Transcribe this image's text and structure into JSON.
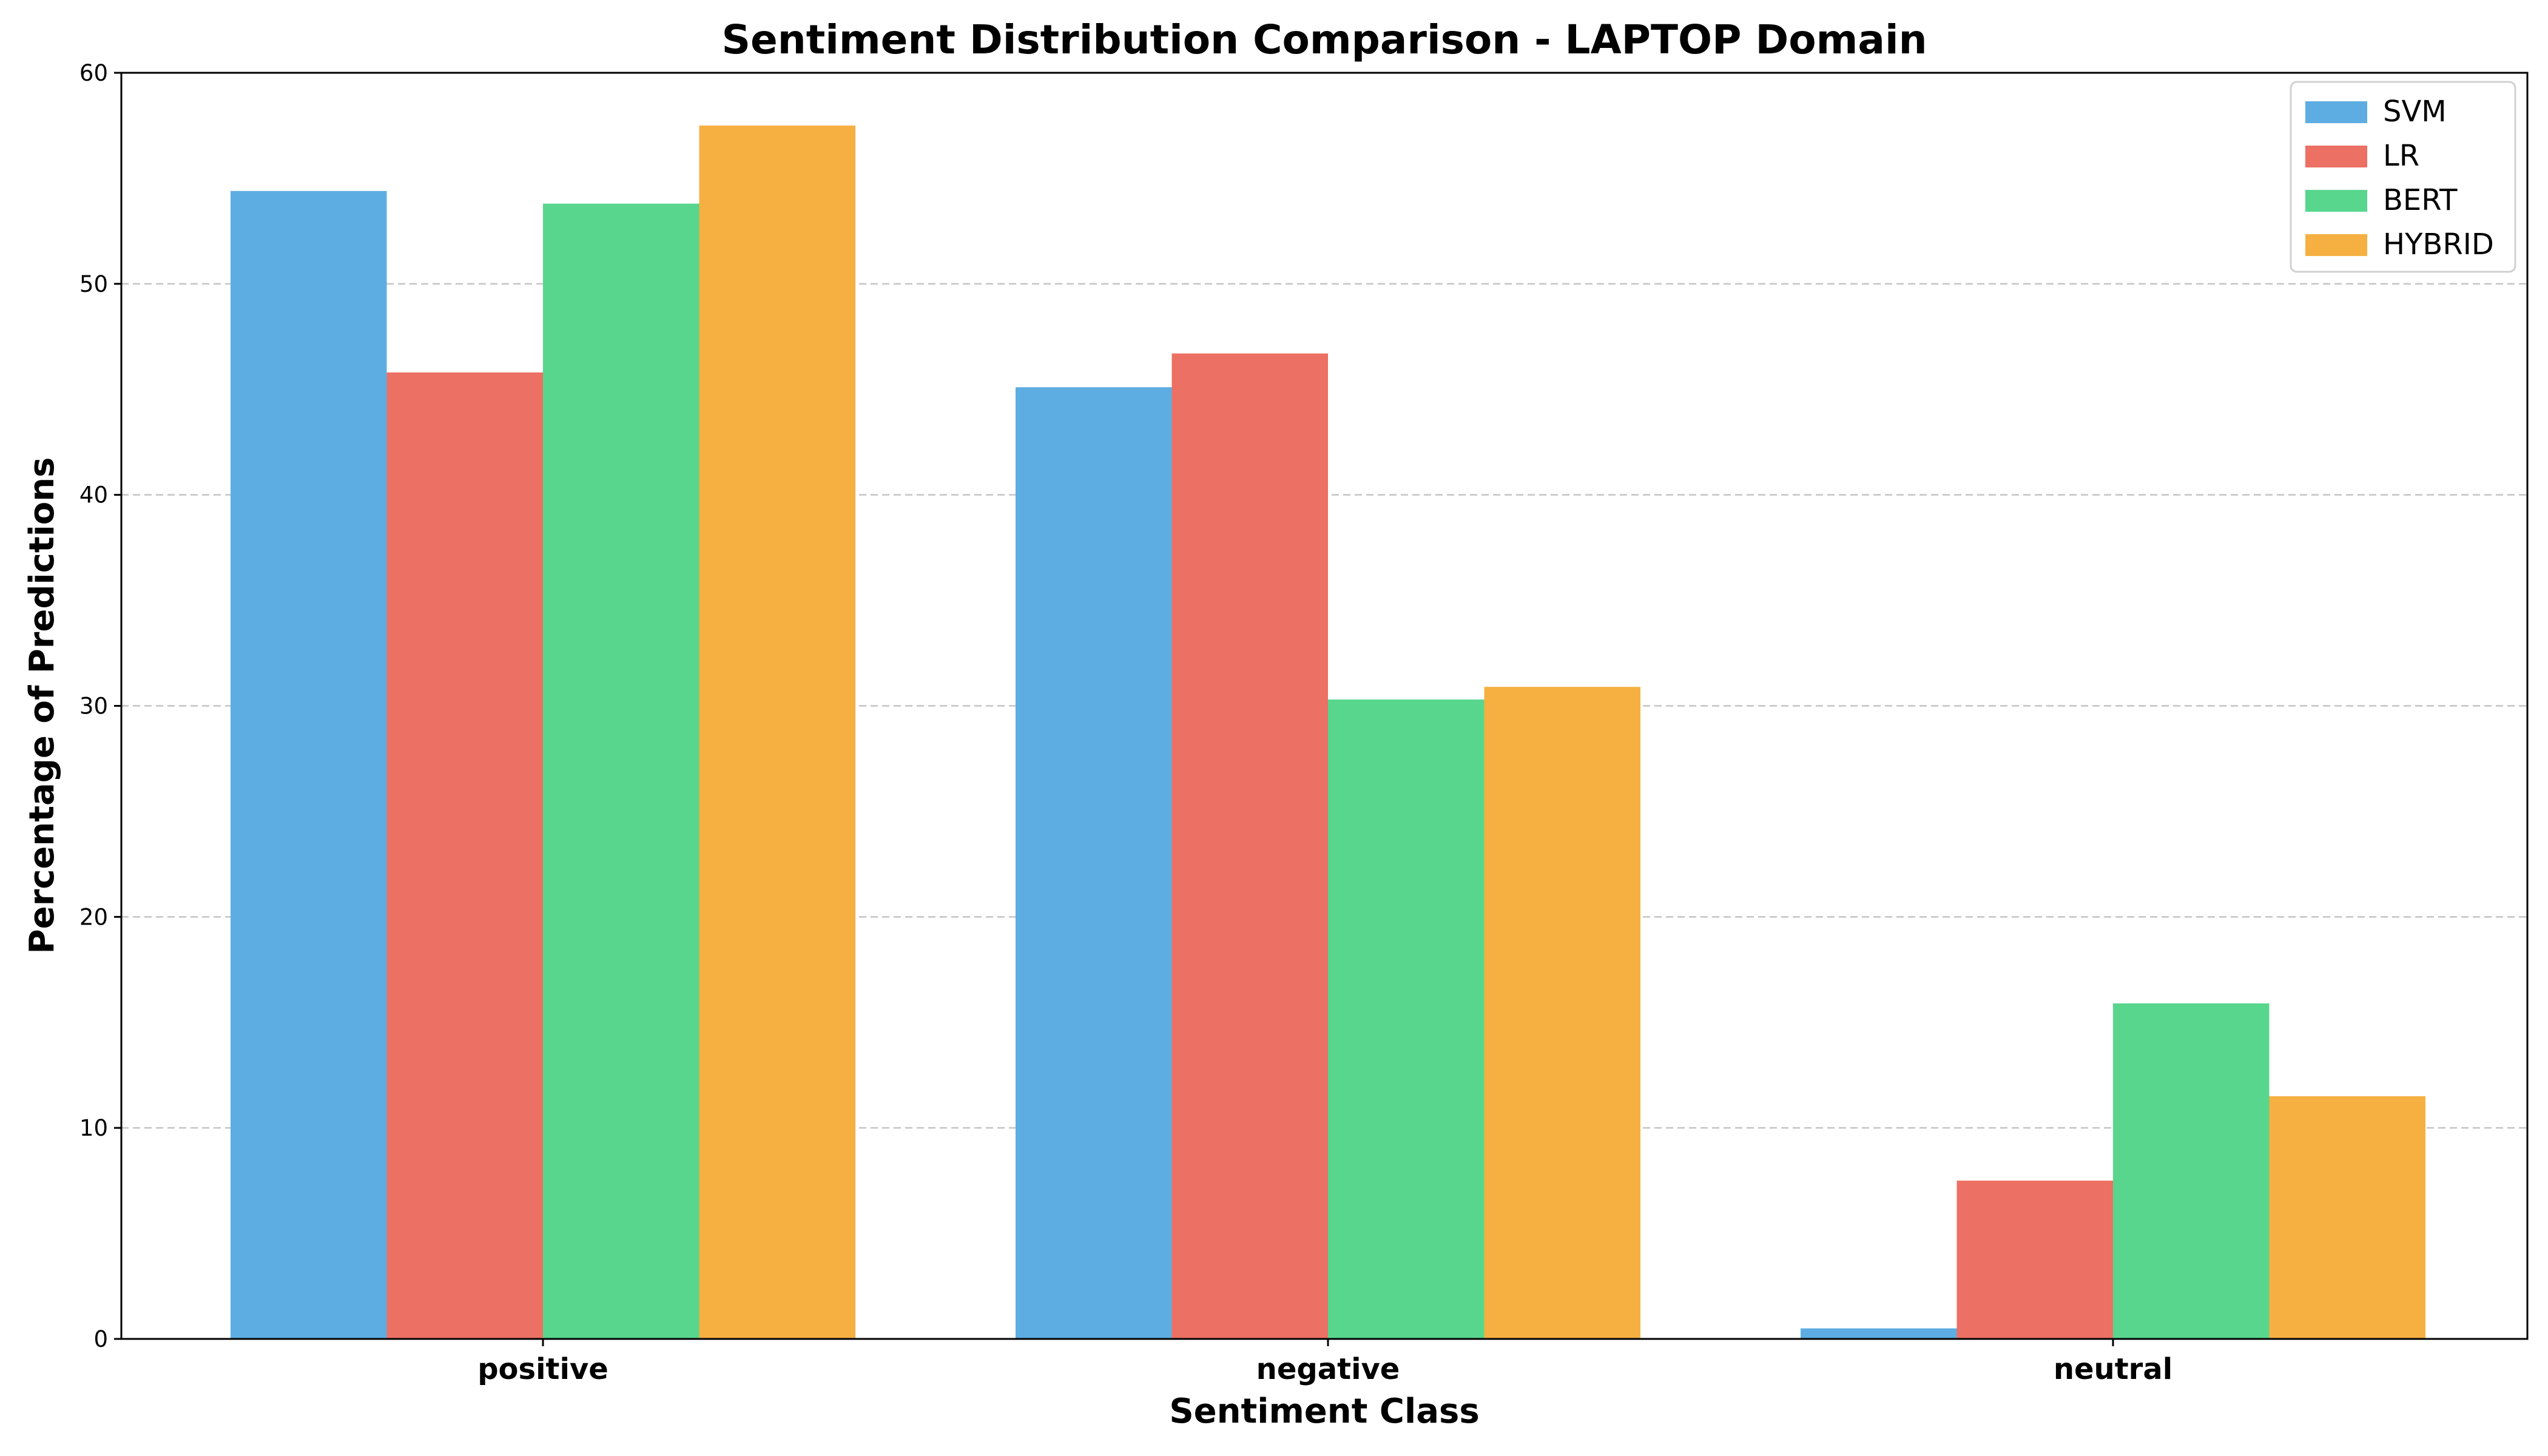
{
  "chart_data": {
    "type": "bar",
    "title": "Sentiment Distribution Comparison - LAPTOP Domain",
    "xlabel": "Sentiment Class",
    "ylabel": "Percentage of Predictions",
    "categories": [
      "positive",
      "negative",
      "neutral"
    ],
    "series": [
      {
        "name": "SVM",
        "color": "#5DADE2",
        "values": [
          54.4,
          45.1,
          0.5
        ]
      },
      {
        "name": "LR",
        "color": "#EC7063",
        "values": [
          45.8,
          46.7,
          7.5
        ]
      },
      {
        "name": "BERT",
        "color": "#58D68D",
        "values": [
          53.8,
          30.3,
          15.9
        ]
      },
      {
        "name": "HYBRID",
        "color": "#F5B041",
        "values": [
          57.5,
          30.9,
          11.5
        ]
      }
    ],
    "ylim": [
      0,
      60
    ],
    "yticks": [
      "0",
      "10",
      "20",
      "30",
      "40",
      "50",
      "60"
    ],
    "grid": "y-dashed",
    "legend": "top-right"
  }
}
